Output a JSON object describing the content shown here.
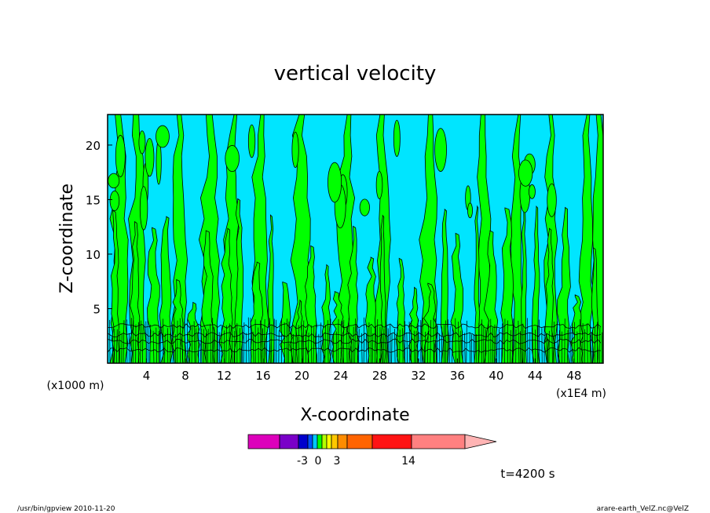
{
  "chart_data": {
    "type": "heatmap",
    "title": "vertical velocity",
    "xlabel": "X-coordinate",
    "ylabel": "Z-coordinate",
    "x_unit_label": "(x1000 m)",
    "x_scale_label": "(x1E4 m)",
    "xlim": [
      0,
      51
    ],
    "ylim": [
      0,
      22.8
    ],
    "x_ticks": [
      4,
      8,
      12,
      16,
      20,
      24,
      28,
      32,
      36,
      40,
      44,
      48
    ],
    "y_ticks": [
      5,
      10,
      15,
      20
    ],
    "colors": {
      "background_field": "#00e5ff",
      "updraft_field": "#00ff00",
      "contour_line": "#000000"
    },
    "colorbar": {
      "tick_labels": [
        "-3",
        "0",
        "3",
        "14"
      ],
      "segments": [
        "#dd00bb",
        "#7a00c8",
        "#0000cc",
        "#0050ff",
        "#00c8ff",
        "#00ff00",
        "#b4ff00",
        "#ffff00",
        "#ffc800",
        "#ff8c00",
        "#ff6400",
        "#ff1414",
        "#ff8080"
      ],
      "extend_color": "#ffb4b4"
    },
    "time_label": "t=4200 s"
  },
  "footer": {
    "left": "/usr/bin/gpview   2010-11-20",
    "right": "arare-earth_VelZ.nc@VelZ"
  }
}
